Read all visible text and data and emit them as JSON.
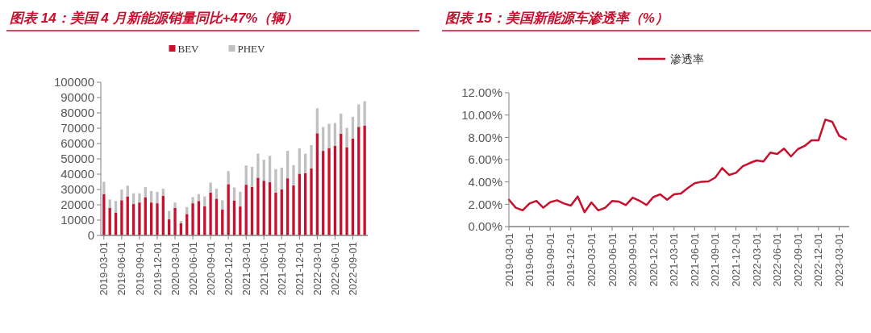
{
  "chart_data": [
    {
      "type": "bar",
      "title": "图表 14：美国 4 月新能源销量同比+47%（辆）",
      "stacked": true,
      "legend": "top",
      "grid": false,
      "categories": [
        "2019-03-01",
        null,
        null,
        "2019-06-01",
        null,
        null,
        "2019-09-01",
        null,
        null,
        "2019-12-01",
        null,
        null,
        "2020-03-01",
        null,
        null,
        "2020-06-01",
        null,
        null,
        "2020-09-01",
        null,
        null,
        "2020-12-01",
        null,
        null,
        "2021-03-01",
        null,
        null,
        "2021-06-01",
        null,
        null,
        "2021-09-01",
        null,
        null,
        "2021-12-01",
        null,
        null,
        "2022-03-01",
        null,
        null,
        "2022-06-01",
        null,
        null,
        "2022-09-01",
        null,
        null
      ],
      "series": [
        {
          "name": "BEV",
          "color": "#c8102e",
          "values": [
            27000,
            18000,
            15000,
            23000,
            25500,
            20500,
            21500,
            25000,
            21500,
            21000,
            26000,
            10500,
            18000,
            8000,
            14000,
            21000,
            22500,
            19000,
            28000,
            24000,
            17000,
            33500,
            22900,
            18900,
            33100,
            31700,
            37700,
            35700,
            34700,
            28000,
            30100,
            37300,
            32700,
            40300,
            40800,
            43800,
            66700,
            55200,
            57100,
            58500,
            66400,
            57600,
            63200,
            70900,
            71800
          ]
        },
        {
          "name": "PHEV",
          "color": "#c0c0c0",
          "values": [
            8000,
            5500,
            7500,
            7000,
            7000,
            7000,
            6000,
            6500,
            7500,
            7500,
            4500,
            5500,
            3500,
            1500,
            4500,
            4000,
            4500,
            6500,
            6500,
            6500,
            6000,
            8500,
            8400,
            9600,
            12600,
            13100,
            15700,
            13700,
            17300,
            15300,
            14200,
            17900,
            13200,
            16600,
            12600,
            15200,
            16300,
            15600,
            15800,
            14900,
            13100,
            12600,
            14200,
            14700,
            15800
          ]
        }
      ],
      "ylim": [
        0,
        100000
      ],
      "yticks": [
        0,
        10000,
        20000,
        30000,
        40000,
        50000,
        60000,
        70000,
        80000,
        90000,
        100000
      ]
    },
    {
      "type": "line",
      "title": "图表 15：美国新能源车渗透率（%）",
      "legend": "top",
      "grid": false,
      "marker": "none",
      "line_style": "solid",
      "categories": [
        "2019-03-01",
        null,
        null,
        "2019-06-01",
        null,
        null,
        "2019-09-01",
        null,
        null,
        "2019-12-01",
        null,
        null,
        "2020-03-01",
        null,
        null,
        "2020-06-01",
        null,
        null,
        "2020-09-01",
        null,
        null,
        "2020-12-01",
        null,
        null,
        "2021-03-01",
        null,
        null,
        "2021-06-01",
        null,
        null,
        "2021-09-01",
        null,
        null,
        "2021-12-01",
        null,
        null,
        "2022-03-01",
        null,
        null,
        "2022-06-01",
        null,
        null,
        "2022-09-01",
        null,
        null,
        "2022-12-01",
        null,
        null,
        "2023-03-01",
        null
      ],
      "series": [
        {
          "name": "渗透率",
          "color": "#c8102e",
          "values": [
            2.41,
            1.69,
            1.45,
            2.07,
            2.31,
            1.69,
            2.19,
            2.36,
            2.07,
            1.88,
            2.7,
            1.28,
            2.17,
            1.45,
            1.69,
            2.29,
            2.24,
            1.93,
            2.6,
            2.31,
            1.93,
            2.65,
            2.89,
            2.41,
            2.89,
            2.96,
            3.45,
            3.88,
            4.02,
            4.05,
            4.39,
            5.25,
            4.63,
            4.82,
            5.42,
            5.69,
            5.93,
            5.83,
            6.63,
            6.51,
            6.99,
            6.29,
            6.94,
            7.23,
            7.73,
            7.73,
            9.59,
            9.4,
            8.14,
            7.81
          ]
        }
      ],
      "ylim": [
        0,
        12
      ],
      "yticks": [
        {
          "value": 0,
          "label": "0.00%"
        },
        {
          "value": 2,
          "label": "2.00%"
        },
        {
          "value": 4,
          "label": "4.00%"
        },
        {
          "value": 6,
          "label": "6.00%"
        },
        {
          "value": 8,
          "label": "8.00%"
        },
        {
          "value": 10,
          "label": "10.00%"
        },
        {
          "value": 12,
          "label": "12.00%"
        }
      ]
    }
  ]
}
